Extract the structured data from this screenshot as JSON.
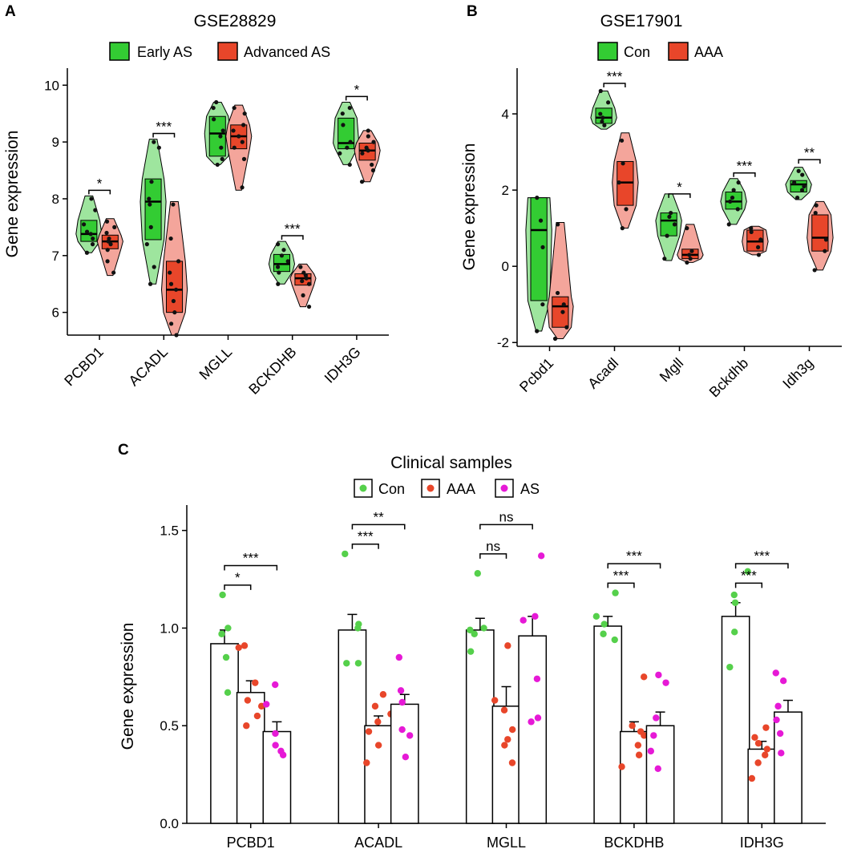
{
  "colors": {
    "green_fill": "#33cc33",
    "green_light": "#9ee59e",
    "red_fill": "#e8462a",
    "red_light": "#f4a59b",
    "magenta": "#e619d6",
    "green_dot": "#55d04b",
    "red_dot": "#e8462a"
  },
  "chart_data": [
    {
      "panel": "A",
      "type": "violin-box",
      "title": "GSE28829",
      "ylabel": "Gene expression",
      "ylim": [
        5.6,
        10.3
      ],
      "yticks": [
        6,
        7,
        8,
        9,
        10
      ],
      "categories": [
        "PCBD1",
        "ACADL",
        "MGLL",
        "BCKDHB",
        "IDH3G"
      ],
      "legend": [
        "Early AS",
        "Advanced AS"
      ],
      "series": [
        {
          "name": "Early AS",
          "boxes": [
            [
              7.05,
              7.25,
              7.38,
              7.62,
              8.05
            ],
            [
              6.5,
              7.28,
              7.95,
              8.35,
              9.05
            ],
            [
              8.6,
              8.75,
              9.15,
              9.45,
              9.7
            ],
            [
              6.5,
              6.72,
              6.85,
              7.02,
              7.25
            ],
            [
              8.6,
              8.88,
              8.98,
              9.42,
              9.7
            ]
          ],
          "points": [
            [
              7.05,
              7.2,
              7.3,
              7.38,
              7.42,
              7.55,
              7.8,
              8.0
            ],
            [
              6.5,
              6.8,
              7.2,
              7.5,
              7.9,
              8.0,
              8.3,
              8.9,
              9.0
            ],
            [
              8.6,
              8.7,
              8.9,
              9.1,
              9.2,
              9.4,
              9.6,
              9.7
            ],
            [
              6.5,
              6.7,
              6.8,
              6.9,
              7.0,
              7.1,
              7.2
            ],
            [
              8.6,
              8.8,
              8.9,
              9.0,
              9.3,
              9.5,
              9.6
            ]
          ]
        },
        {
          "name": "Advanced AS",
          "boxes": [
            [
              6.65,
              7.12,
              7.25,
              7.36,
              7.65
            ],
            [
              5.6,
              6.0,
              6.4,
              6.9,
              7.95
            ],
            [
              8.15,
              8.88,
              9.1,
              9.3,
              9.65
            ],
            [
              6.1,
              6.48,
              6.6,
              6.68,
              6.85
            ],
            [
              8.3,
              8.68,
              8.85,
              8.98,
              9.2
            ]
          ],
          "points": [
            [
              6.7,
              6.9,
              7.1,
              7.2,
              7.25,
              7.3,
              7.4,
              7.5,
              7.6
            ],
            [
              5.6,
              5.8,
              6.0,
              6.2,
              6.4,
              6.5,
              6.7,
              6.9,
              7.3,
              7.9
            ],
            [
              8.2,
              8.7,
              8.9,
              9.0,
              9.1,
              9.2,
              9.3,
              9.5,
              9.6
            ],
            [
              6.1,
              6.3,
              6.5,
              6.55,
              6.6,
              6.65,
              6.7,
              6.8
            ],
            [
              8.3,
              8.5,
              8.6,
              8.8,
              8.85,
              8.9,
              9.0,
              9.1,
              9.2
            ]
          ]
        }
      ],
      "significance": [
        {
          "category": "PCBD1",
          "label": "*",
          "y": 8.15
        },
        {
          "category": "ACADL",
          "label": "***",
          "y": 9.15
        },
        {
          "category": "BCKDHB",
          "label": "***",
          "y": 7.35
        },
        {
          "category": "IDH3G",
          "label": "*",
          "y": 9.8
        }
      ]
    },
    {
      "panel": "B",
      "type": "violin-box",
      "title": "GSE17901",
      "ylabel": "Gene expression",
      "ylim": [
        -2.1,
        5.2
      ],
      "yticks": [
        -2,
        0,
        2,
        4
      ],
      "categories": [
        "Pcbd1",
        "Acadl",
        "Mgll",
        "Bckdhb",
        "Idh3g"
      ],
      "legend": [
        "Con",
        "AAA"
      ],
      "series": [
        {
          "name": "Con",
          "boxes": [
            [
              -1.7,
              -0.9,
              0.95,
              1.8,
              1.8
            ],
            [
              3.6,
              3.75,
              3.9,
              4.15,
              4.6
            ],
            [
              0.15,
              0.8,
              1.2,
              1.4,
              1.9
            ],
            [
              1.1,
              1.5,
              1.7,
              1.95,
              2.3
            ],
            [
              1.75,
              1.95,
              2.15,
              2.25,
              2.6
            ]
          ],
          "points": [
            [
              -1.7,
              -1.0,
              0.5,
              1.2,
              1.8
            ],
            [
              3.7,
              3.8,
              3.9,
              4.0,
              4.3,
              4.6
            ],
            [
              0.2,
              0.8,
              1.1,
              1.3,
              1.4
            ],
            [
              1.1,
              1.5,
              1.7,
              1.8,
              2.0,
              2.2
            ],
            [
              1.8,
              2.0,
              2.1,
              2.2,
              2.4,
              2.5
            ]
          ]
        },
        {
          "name": "AAA",
          "boxes": [
            [
              -1.9,
              -1.6,
              -1.05,
              -0.8,
              1.15
            ],
            [
              1.0,
              1.6,
              2.2,
              2.75,
              3.5
            ],
            [
              0.1,
              0.2,
              0.3,
              0.45,
              1.1
            ],
            [
              0.3,
              0.4,
              0.65,
              0.95,
              1.05
            ],
            [
              -0.1,
              0.4,
              0.75,
              1.35,
              1.7
            ]
          ],
          "points": [
            [
              -1.9,
              -1.6,
              -1.2,
              -1.0,
              -0.7,
              1.1
            ],
            [
              1.0,
              1.5,
              2.2,
              2.7,
              3.3
            ],
            [
              0.1,
              0.2,
              0.3,
              0.4,
              1.0
            ],
            [
              0.3,
              0.5,
              0.7,
              0.9,
              1.0
            ],
            [
              -0.1,
              0.4,
              0.7,
              1.4,
              1.6
            ]
          ]
        }
      ],
      "significance": [
        {
          "category": "Acadl",
          "label": "***",
          "y": 4.8
        },
        {
          "category": "Mgll",
          "label": "*",
          "y": 1.9
        },
        {
          "category": "Bckdhb",
          "label": "***",
          "y": 2.45
        },
        {
          "category": "Idh3g",
          "label": "**",
          "y": 2.8
        }
      ]
    },
    {
      "panel": "C",
      "type": "bar",
      "title": "Clinical samples",
      "ylabel": "Gene expression",
      "ylim": [
        0,
        1.63
      ],
      "yticks": [
        "0.0",
        "0.5",
        "1.0",
        "1.5"
      ],
      "categories": [
        "PCBD1",
        "ACADL",
        "MGLL",
        "BCKDHB",
        "IDH3G"
      ],
      "legend": [
        "Con",
        "AAA",
        "AS"
      ],
      "series": [
        {
          "name": "Con",
          "values": [
            0.92,
            0.99,
            0.99,
            1.01,
            1.06
          ],
          "errors": [
            0.07,
            0.08,
            0.06,
            0.05,
            0.07
          ],
          "points": [
            [
              1.17,
              1.0,
              0.97,
              0.85,
              0.67
            ],
            [
              1.38,
              1.02,
              1.0,
              0.82,
              0.82
            ],
            [
              1.28,
              1.0,
              0.99,
              0.97,
              0.88
            ],
            [
              1.18,
              1.06,
              1.02,
              0.97,
              0.94
            ],
            [
              1.29,
              1.17,
              1.13,
              0.98,
              0.8
            ]
          ]
        },
        {
          "name": "AAA",
          "values": [
            0.67,
            0.5,
            0.6,
            0.47,
            0.38
          ],
          "errors": [
            0.06,
            0.05,
            0.1,
            0.05,
            0.04
          ],
          "points": [
            [
              0.91,
              0.9,
              0.72,
              0.63,
              0.6,
              0.55,
              0.5
            ],
            [
              0.66,
              0.6,
              0.56,
              0.52,
              0.47,
              0.4,
              0.31
            ],
            [
              0.91,
              0.63,
              0.58,
              0.48,
              0.43,
              0.4,
              0.31
            ],
            [
              0.75,
              0.5,
              0.47,
              0.45,
              0.4,
              0.35,
              0.29
            ],
            [
              0.49,
              0.44,
              0.41,
              0.38,
              0.35,
              0.31,
              0.23
            ]
          ]
        },
        {
          "name": "AS",
          "values": [
            0.47,
            0.61,
            0.96,
            0.5,
            0.57
          ],
          "errors": [
            0.05,
            0.05,
            0.1,
            0.07,
            0.06
          ],
          "points": [
            [
              0.71,
              0.61,
              0.46,
              0.4,
              0.37,
              0.35
            ],
            [
              0.85,
              0.68,
              0.62,
              0.48,
              0.45,
              0.34
            ],
            [
              1.37,
              1.06,
              1.04,
              0.74,
              0.54,
              0.52
            ],
            [
              0.76,
              0.72,
              0.54,
              0.45,
              0.37,
              0.28
            ],
            [
              0.77,
              0.73,
              0.6,
              0.53,
              0.46,
              0.36
            ]
          ]
        }
      ],
      "significance": [
        {
          "category": "PCBD1",
          "pair": [
            0,
            1
          ],
          "label": "*",
          "y": 1.22
        },
        {
          "category": "PCBD1",
          "pair": [
            0,
            2
          ],
          "label": "***",
          "y": 1.32
        },
        {
          "category": "ACADL",
          "pair": [
            0,
            1
          ],
          "label": "***",
          "y": 1.43
        },
        {
          "category": "ACADL",
          "pair": [
            0,
            2
          ],
          "label": "**",
          "y": 1.53
        },
        {
          "category": "MGLL",
          "pair": [
            0,
            1
          ],
          "label": "ns",
          "y": 1.38
        },
        {
          "category": "MGLL",
          "pair": [
            0,
            2
          ],
          "label": "ns",
          "y": 1.53
        },
        {
          "category": "BCKDHB",
          "pair": [
            0,
            1
          ],
          "label": "***",
          "y": 1.23
        },
        {
          "category": "BCKDHB",
          "pair": [
            0,
            2
          ],
          "label": "***",
          "y": 1.33
        },
        {
          "category": "IDH3G",
          "pair": [
            0,
            1
          ],
          "label": "***",
          "y": 1.23
        },
        {
          "category": "IDH3G",
          "pair": [
            0,
            2
          ],
          "label": "***",
          "y": 1.33
        }
      ]
    }
  ]
}
